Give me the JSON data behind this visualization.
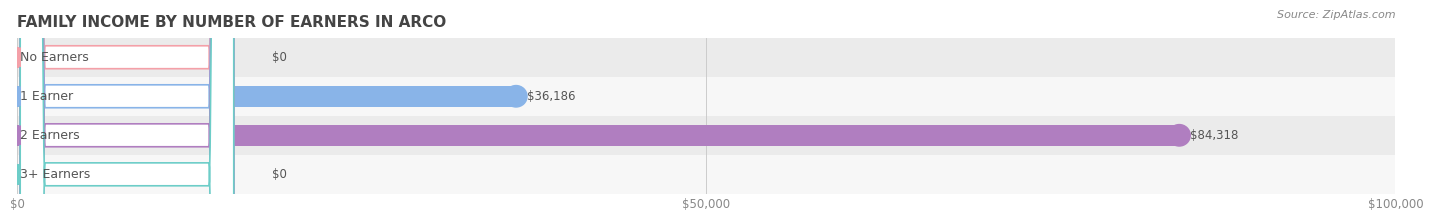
{
  "title": "FAMILY INCOME BY NUMBER OF EARNERS IN ARCO",
  "source": "Source: ZipAtlas.com",
  "categories": [
    "No Earners",
    "1 Earner",
    "2 Earners",
    "3+ Earners"
  ],
  "values": [
    0,
    36186,
    84318,
    0
  ],
  "bar_colors": [
    "#f4a0a8",
    "#89b4e8",
    "#b07ec0",
    "#6dcdc8"
  ],
  "label_colors": [
    "#f4a0a8",
    "#89b4e8",
    "#b07ec0",
    "#6dcdc8"
  ],
  "value_labels": [
    "$0",
    "$36,186",
    "$84,318",
    "$0"
  ],
  "xlim": [
    0,
    100000
  ],
  "xticks": [
    0,
    50000,
    100000
  ],
  "xtick_labels": [
    "$0",
    "$50,000",
    "$100,000"
  ],
  "background_color": "#ffffff",
  "row_bg_color": "#f0f0f0",
  "bar_height": 0.55,
  "title_fontsize": 11,
  "label_fontsize": 9,
  "value_fontsize": 8.5,
  "source_fontsize": 8
}
